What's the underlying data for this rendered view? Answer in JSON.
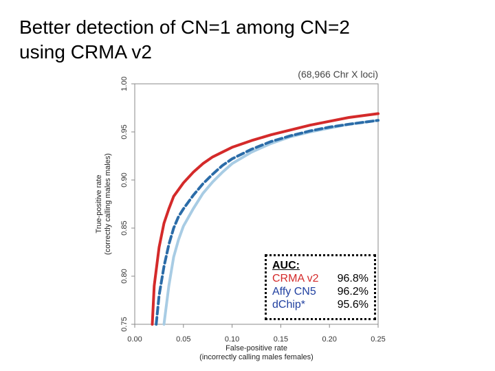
{
  "title": {
    "line1": "Better detection of CN=1 among CN=2",
    "line2": "using CRMA v2"
  },
  "chart_data": {
    "type": "line",
    "subtitle": "(68,966 Chr X loci)",
    "xlabel_line1": "False-positive rate",
    "xlabel_line2": "(incorrectly calling males females)",
    "ylabel_line1": "True-positive rate",
    "ylabel_line2": "(correctly calling males males)",
    "xlim": [
      0.0,
      0.25
    ],
    "ylim": [
      0.75,
      1.0
    ],
    "xticks": [
      {
        "value": 0.0,
        "label": "0.00"
      },
      {
        "value": 0.05,
        "label": "0.05"
      },
      {
        "value": 0.1,
        "label": "0.10"
      },
      {
        "value": 0.15,
        "label": "0.15"
      },
      {
        "value": 0.2,
        "label": "0.20"
      },
      {
        "value": 0.25,
        "label": "0.25"
      }
    ],
    "yticks": [
      {
        "value": 0.75,
        "label": "0.75"
      },
      {
        "value": 0.8,
        "label": "0.80"
      },
      {
        "value": 0.85,
        "label": "0.85"
      },
      {
        "value": 0.9,
        "label": "0.90"
      },
      {
        "value": 0.95,
        "label": "0.95"
      },
      {
        "value": 1.0,
        "label": "1.00"
      }
    ],
    "legend": {
      "title": "AUC:",
      "placement": "bottom-right"
    },
    "series": [
      {
        "name": "CRMA v2",
        "auc": "96.8%",
        "color": "#d42a2a",
        "style": "solid",
        "x": [
          0.018,
          0.02,
          0.025,
          0.03,
          0.035,
          0.04,
          0.05,
          0.06,
          0.07,
          0.08,
          0.09,
          0.1,
          0.12,
          0.14,
          0.16,
          0.18,
          0.2,
          0.22,
          0.25
        ],
        "y": [
          0.75,
          0.79,
          0.83,
          0.855,
          0.87,
          0.883,
          0.897,
          0.908,
          0.917,
          0.924,
          0.929,
          0.934,
          0.941,
          0.947,
          0.952,
          0.957,
          0.961,
          0.965,
          0.969
        ]
      },
      {
        "name": "Affy CN5",
        "auc": "96.2%",
        "color": "#2b6ca8",
        "style": "dashed",
        "x": [
          0.022,
          0.025,
          0.03,
          0.035,
          0.04,
          0.045,
          0.05,
          0.06,
          0.07,
          0.08,
          0.09,
          0.1,
          0.12,
          0.14,
          0.16,
          0.18,
          0.2,
          0.22,
          0.25
        ],
        "y": [
          0.75,
          0.78,
          0.81,
          0.833,
          0.85,
          0.862,
          0.87,
          0.884,
          0.896,
          0.906,
          0.915,
          0.922,
          0.932,
          0.94,
          0.946,
          0.951,
          0.955,
          0.958,
          0.962
        ]
      },
      {
        "name": "dChip*",
        "auc": "95.6%",
        "color": "#a8cce4",
        "style": "solid",
        "x": [
          0.03,
          0.035,
          0.04,
          0.045,
          0.05,
          0.06,
          0.07,
          0.08,
          0.09,
          0.1,
          0.12,
          0.14,
          0.16,
          0.18,
          0.2,
          0.22,
          0.25
        ],
        "y": [
          0.75,
          0.79,
          0.82,
          0.838,
          0.852,
          0.87,
          0.886,
          0.898,
          0.908,
          0.917,
          0.929,
          0.938,
          0.945,
          0.95,
          0.954,
          0.958,
          0.962
        ]
      }
    ]
  }
}
